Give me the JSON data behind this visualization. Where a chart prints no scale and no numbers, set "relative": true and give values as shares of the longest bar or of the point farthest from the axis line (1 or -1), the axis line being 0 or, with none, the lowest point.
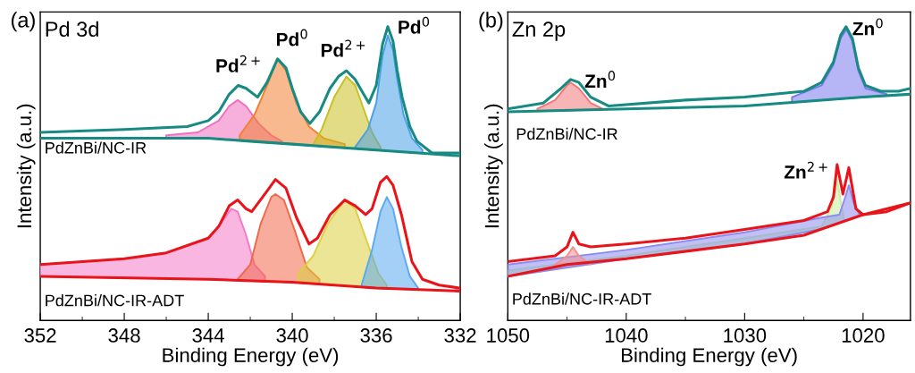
{
  "chart_data": [
    {
      "type": "line",
      "title": "Pd 3d",
      "xlabel": "Binding Energy (eV)",
      "ylabel": "Intensity (a.u.)",
      "relative": true,
      "xlim": [
        352,
        332
      ],
      "xticks": [
        352,
        348,
        344,
        340,
        336,
        332
      ],
      "annotations": [
        "(a)",
        "Pd$^{2+}$",
        "Pd$^{0}$",
        "Pd$^{2+}$",
        "Pd$^{0}$",
        "PdZnBi/NC-IR",
        "PdZnBi/NC-IR-ADT"
      ],
      "series": [
        {
          "type": "area",
          "color": "#f070c0",
          "x": [
            346,
            344.5,
            343.5,
            343,
            342.6,
            342.2,
            341.6,
            341,
            340.5
          ],
          "values": [
            0.63,
            0.64,
            0.68,
            0.73,
            0.75,
            0.73,
            0.67,
            0.63,
            0.61
          ]
        },
        {
          "type": "area",
          "color": "#f08030",
          "x": [
            342.5,
            341.8,
            341.2,
            340.7,
            340.3,
            339.8,
            339.2,
            338.5,
            337.5
          ],
          "values": [
            0.63,
            0.7,
            0.8,
            0.89,
            0.85,
            0.74,
            0.66,
            0.62,
            0.6
          ]
        },
        {
          "type": "area",
          "color": "#c8c020",
          "x": [
            339,
            338.6,
            338,
            337.42,
            337,
            336.6,
            336.2,
            335.8
          ],
          "values": [
            0.6,
            0.65,
            0.76,
            0.83,
            0.8,
            0.72,
            0.64,
            0.59
          ]
        },
        {
          "type": "area",
          "color": "#4aa0e8",
          "x": [
            337,
            336.4,
            336,
            335.7,
            335.45,
            335.2,
            335,
            334.7,
            334.3,
            333.8
          ],
          "values": [
            0.59,
            0.65,
            0.74,
            0.9,
            0.97,
            0.92,
            0.82,
            0.7,
            0.62,
            0.58
          ]
        },
        {
          "color": "#178a82",
          "x": [
            352,
            344,
            342,
            340,
            338,
            336,
            334,
            332
          ],
          "values": [
            0.62,
            0.62,
            0.61,
            0.6,
            0.59,
            0.58,
            0.57,
            0.56
          ]
        },
        {
          "color": "#178a82",
          "x": [
            352,
            348,
            345,
            344,
            343.5,
            343,
            342.57,
            342.2,
            341.65,
            341.2,
            340.7,
            340.3,
            340,
            339.6,
            339.16,
            338.7,
            338.2,
            337.8,
            337.42,
            337,
            336.6,
            336.35,
            336,
            335.7,
            335.45,
            335.2,
            335,
            334.77,
            334.4,
            334.06,
            333.35,
            332
          ],
          "values": [
            0.64,
            0.65,
            0.66,
            0.68,
            0.71,
            0.77,
            0.8,
            0.79,
            0.76,
            0.81,
            0.89,
            0.86,
            0.79,
            0.71,
            0.67,
            0.71,
            0.79,
            0.83,
            0.85,
            0.82,
            0.77,
            0.74,
            0.8,
            0.94,
            1.0,
            0.95,
            0.85,
            0.76,
            0.66,
            0.61,
            0.57,
            0.57
          ]
        },
        {
          "type": "area",
          "color": "#f27ac6",
          "x": [
            352,
            348,
            346,
            344,
            343.4,
            342.9,
            342.6,
            342.2,
            341.8,
            341.3
          ],
          "values": [
            0.19,
            0.21,
            0.23,
            0.28,
            0.33,
            0.38,
            0.37,
            0.29,
            0.19,
            0.15
          ]
        },
        {
          "type": "area",
          "color": "#f0684a",
          "x": [
            342.6,
            342,
            341.5,
            341,
            340.8,
            340.4,
            339.9,
            339.3,
            338.7
          ],
          "values": [
            0.14,
            0.19,
            0.33,
            0.42,
            0.43,
            0.41,
            0.31,
            0.18,
            0.14
          ]
        },
        {
          "type": "area",
          "color": "#dcd040",
          "x": [
            339.7,
            339,
            338.3,
            337.5,
            337,
            336.4,
            335.9,
            335.5
          ],
          "values": [
            0.16,
            0.22,
            0.33,
            0.41,
            0.38,
            0.26,
            0.16,
            0.12
          ]
        },
        {
          "type": "area",
          "color": "#5aaaf2",
          "x": [
            336.7,
            336.2,
            335.8,
            335.5,
            335.2,
            334.8,
            334.4,
            334
          ],
          "values": [
            0.12,
            0.24,
            0.37,
            0.42,
            0.38,
            0.25,
            0.15,
            0.11
          ]
        },
        {
          "color": "#e8141a",
          "x": [
            352,
            344,
            340,
            336,
            332
          ],
          "values": [
            0.15,
            0.14,
            0.13,
            0.11,
            0.1
          ]
        },
        {
          "color": "#e8141a",
          "x": [
            352,
            348,
            346,
            344,
            343.5,
            343,
            342.6,
            342.2,
            341.93,
            341.2,
            340.8,
            340.3,
            339.8,
            339.2,
            338.8,
            338.2,
            337.5,
            337,
            336.5,
            336.2,
            335.8,
            335.5,
            335.2,
            334.8,
            334.3,
            333.8,
            333,
            332
          ],
          "values": [
            0.19,
            0.21,
            0.23,
            0.28,
            0.32,
            0.39,
            0.41,
            0.38,
            0.37,
            0.44,
            0.48,
            0.45,
            0.35,
            0.26,
            0.28,
            0.36,
            0.41,
            0.39,
            0.36,
            0.38,
            0.47,
            0.49,
            0.46,
            0.36,
            0.2,
            0.14,
            0.12,
            0.11
          ]
        }
      ]
    },
    {
      "type": "line",
      "title": "Zn 2p",
      "xlabel": "Binding Energy (eV)",
      "ylabel": "Intensity (a.u.)",
      "relative": true,
      "xlim": [
        1050,
        1016
      ],
      "xticks": [
        1050,
        1040,
        1030,
        1020
      ],
      "annotations": [
        "(b)",
        "Zn$^{0}$",
        "Zn$^{0}$",
        "Zn$^{2+}$",
        "PdZnBi/NC-IR",
        "PdZnBi/NC-IR-ADT"
      ],
      "series": [
        {
          "type": "area",
          "color": "#f07878",
          "x": [
            1047.5,
            1046,
            1045,
            1044.7,
            1044,
            1043,
            1042
          ],
          "values": [
            0.72,
            0.75,
            0.8,
            0.81,
            0.79,
            0.74,
            0.72
          ]
        },
        {
          "type": "area",
          "color": "#7a7af0",
          "x": [
            1026,
            1023.5,
            1022.5,
            1021.9,
            1021.4,
            1020.9,
            1020.4,
            1019.8,
            1018
          ],
          "values": [
            0.76,
            0.8,
            0.87,
            0.96,
            0.99,
            0.95,
            0.85,
            0.79,
            0.77
          ]
        },
        {
          "color": "#178a82",
          "x": [
            1050,
            1040,
            1030,
            1020,
            1016
          ],
          "values": [
            0.71,
            0.72,
            0.73,
            0.76,
            0.77
          ]
        },
        {
          "color": "#178a82",
          "x": [
            1050,
            1047,
            1045.5,
            1044.7,
            1044,
            1043,
            1041.5,
            1035,
            1030,
            1025,
            1023.5,
            1022.5,
            1021.9,
            1021.44,
            1020.9,
            1020.4,
            1019.8,
            1018.5,
            1017,
            1016
          ],
          "values": [
            0.72,
            0.74,
            0.79,
            0.82,
            0.81,
            0.76,
            0.73,
            0.75,
            0.76,
            0.78,
            0.81,
            0.88,
            0.97,
            1.0,
            0.96,
            0.86,
            0.8,
            0.78,
            0.78,
            0.79
          ]
        },
        {
          "type": "area",
          "color": "#c8f0a0",
          "x": [
            1050,
            1040,
            1030,
            1023.5,
            1022.6,
            1022.2,
            1021.6
          ],
          "values": [
            0.17,
            0.22,
            0.28,
            0.32,
            0.39,
            0.48,
            0.34
          ]
        },
        {
          "type": "area",
          "color": "#8c8cf0",
          "x": [
            1050,
            1040,
            1030,
            1023.5,
            1022,
            1021.5,
            1021.2,
            1020.8,
            1020.3
          ],
          "values": [
            0.19,
            0.24,
            0.3,
            0.35,
            0.36,
            0.42,
            0.46,
            0.4,
            0.36
          ]
        },
        {
          "type": "area",
          "color": "#f29090",
          "x": [
            1046,
            1045,
            1044.5,
            1044,
            1043
          ],
          "values": [
            0.19,
            0.22,
            0.25,
            0.22,
            0.19
          ]
        },
        {
          "color": "#e8141a",
          "x": [
            1050,
            1045,
            1040,
            1030,
            1025,
            1020,
            1016
          ],
          "values": [
            0.15,
            0.19,
            0.21,
            0.26,
            0.29,
            0.36,
            0.4
          ]
        },
        {
          "color": "#e8141a",
          "x": [
            1050,
            1046,
            1045,
            1044.5,
            1044,
            1043,
            1040,
            1035,
            1030,
            1025,
            1023,
            1022.5,
            1022.19,
            1021.7,
            1021.2,
            1020.6,
            1020,
            1018,
            1016
          ],
          "values": [
            0.2,
            0.22,
            0.25,
            0.3,
            0.26,
            0.25,
            0.26,
            0.28,
            0.31,
            0.34,
            0.37,
            0.42,
            0.53,
            0.43,
            0.52,
            0.38,
            0.36,
            0.37,
            0.4
          ]
        }
      ]
    }
  ]
}
